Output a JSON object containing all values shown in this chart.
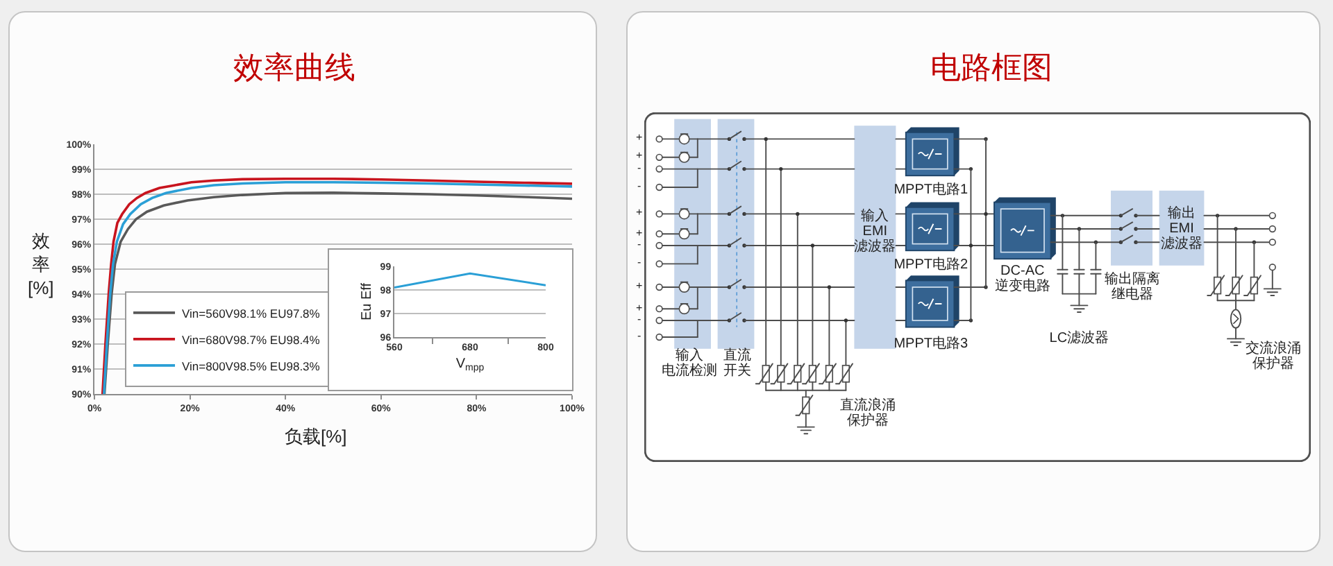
{
  "chart_data": [
    {
      "type": "line",
      "title": "效率曲线",
      "xlabel": "负载[%]",
      "ylabel": "效率[%]",
      "xlim": [
        0,
        100
      ],
      "ylim": [
        90,
        100
      ],
      "xticks": [
        {
          "value": 0,
          "label": "0%"
        },
        {
          "value": 20,
          "label": "20%"
        },
        {
          "value": 40,
          "label": "40%"
        },
        {
          "value": 60,
          "label": "60%"
        },
        {
          "value": 80,
          "label": "80%"
        },
        {
          "value": 100,
          "label": "100%"
        }
      ],
      "yticks": [
        {
          "value": 90,
          "label": "90%"
        },
        {
          "value": 91,
          "label": "91%"
        },
        {
          "value": 92,
          "label": "92%"
        },
        {
          "value": 93,
          "label": "93%"
        },
        {
          "value": 94,
          "label": "94%"
        },
        {
          "value": 95,
          "label": "95%"
        },
        {
          "value": 96,
          "label": "96%"
        },
        {
          "value": 97,
          "label": "97%"
        },
        {
          "value": 98,
          "label": "98%"
        },
        {
          "value": 99,
          "label": "99%"
        },
        {
          "value": 100,
          "label": "100%"
        }
      ],
      "grid": "y",
      "legend": "bottom left",
      "series": [
        {
          "name": "Vin=560V98.1% EU97.8%",
          "color": "#595959",
          "x": [
            2.1,
            2.8,
            3.6,
            4.3,
            5.5,
            7,
            8.7,
            11,
            14.5,
            19.5,
            25,
            31,
            40,
            50,
            60,
            70,
            80,
            90,
            100
          ],
          "values": [
            90,
            92,
            94,
            95.2,
            96.1,
            96.6,
            97,
            97.3,
            97.55,
            97.75,
            97.88,
            97.97,
            98.05,
            98.06,
            98.03,
            98,
            97.95,
            97.89,
            97.82
          ]
        },
        {
          "name": "Vin=680V98.7% EU98.4%",
          "color": "#c8141e",
          "x": [
            1.7,
            2.3,
            3,
            3.5,
            4,
            4.8,
            5.8,
            7.3,
            8.9,
            10.7,
            13.6,
            16.5,
            20.3,
            25,
            31,
            40,
            50,
            60,
            70,
            80,
            90,
            100
          ],
          "values": [
            90,
            92,
            94.05,
            95.2,
            96.1,
            96.85,
            97.2,
            97.6,
            97.85,
            98.05,
            98.25,
            98.35,
            98.48,
            98.55,
            98.6,
            98.62,
            98.62,
            98.59,
            98.55,
            98.5,
            98.46,
            98.42
          ]
        },
        {
          "name": "Vin=800V98.5% EU98.3%",
          "color": "#2a9fd6",
          "x": [
            2,
            2.6,
            3.3,
            3.9,
            4.7,
            6,
            7.5,
            9.7,
            12.1,
            15,
            20.3,
            25,
            31,
            40,
            50,
            60,
            70,
            80,
            90,
            100
          ],
          "values": [
            90,
            92,
            94,
            95.2,
            96.1,
            96.8,
            97.2,
            97.6,
            97.85,
            98.05,
            98.25,
            98.36,
            98.43,
            98.48,
            98.48,
            98.46,
            98.43,
            98.39,
            98.35,
            98.31
          ]
        }
      ]
    },
    {
      "type": "line",
      "xlabel": "V$_{mpp}$",
      "ylabel": "Eu Eff",
      "categories": [
        "560",
        "680",
        "800"
      ],
      "ylim": [
        96,
        99
      ],
      "yticks": [
        96,
        97,
        98,
        99
      ],
      "grid": "y",
      "series": [
        {
          "color": "#2a9fd6",
          "values": [
            98.1,
            98.7,
            98.2
          ]
        }
      ]
    },
    {
      "type": "other",
      "title": "电路框图",
      "annotations": [
        "输入电流检测",
        "直流开关",
        "直流浪涌保护器",
        "输入\nEMI\n滤波器",
        "MPPT电路1",
        "MPPT电路2",
        "MPPT电路3",
        "DC-AC\n逆变电路",
        "LC滤波器",
        "输出隔离继电器",
        "输出\nEMI\n滤波器",
        "交流浪涌保护器",
        "+",
        "+",
        "-",
        "-",
        "+",
        "+",
        "-",
        "-",
        "+",
        "+",
        "-",
        "-"
      ]
    }
  ]
}
